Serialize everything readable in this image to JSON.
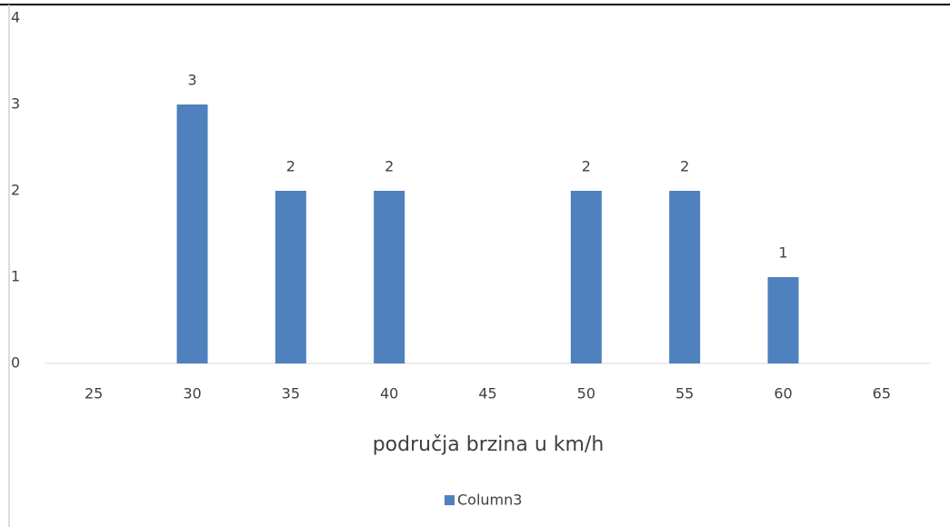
{
  "chart_data": {
    "type": "bar",
    "categories": [
      25,
      30,
      35,
      40,
      45,
      50,
      55,
      60,
      65
    ],
    "series": [
      {
        "name": "Column3",
        "color": "#4e81bd",
        "values": [
          null,
          3,
          2,
          2,
          null,
          2,
          2,
          1,
          null
        ]
      }
    ],
    "x_label": "područja brzina u km/h",
    "ylim": [
      0,
      4
    ],
    "yticks": [
      0,
      1,
      2,
      3,
      4
    ],
    "grid": false,
    "legend": "bottom"
  }
}
